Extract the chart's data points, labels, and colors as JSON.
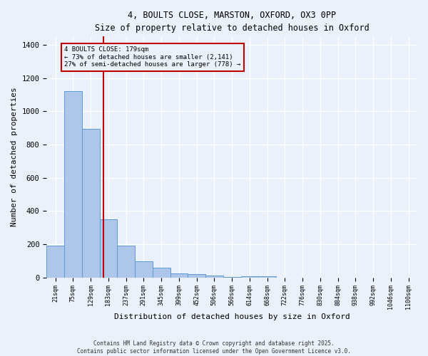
{
  "title_line1": "4, BOULTS CLOSE, MARSTON, OXFORD, OX3 0PP",
  "title_line2": "Size of property relative to detached houses in Oxford",
  "xlabel": "Distribution of detached houses by size in Oxford",
  "ylabel": "Number of detached properties",
  "bar_labels": [
    "21sqm",
    "75sqm",
    "129sqm",
    "183sqm",
    "237sqm",
    "291sqm",
    "345sqm",
    "399sqm",
    "452sqm",
    "506sqm",
    "560sqm",
    "614sqm",
    "668sqm",
    "722sqm",
    "776sqm",
    "830sqm",
    "884sqm",
    "938sqm",
    "992sqm",
    "1046sqm",
    "1100sqm"
  ],
  "bar_values": [
    193,
    1120,
    893,
    350,
    193,
    97,
    57,
    25,
    20,
    13,
    5,
    8,
    7,
    0,
    0,
    0,
    0,
    0,
    0,
    0,
    0
  ],
  "bar_color": "#aec6e8",
  "bar_edge_color": "#5b9bd5",
  "vline_x": 2.73,
  "vline_color": "#c00000",
  "annotation_box_text": "4 BOULTS CLOSE: 179sqm\n← 73% of detached houses are smaller (2,141)\n27% of semi-detached houses are larger (778) →",
  "box_edge_color": "#c00000",
  "ylim": [
    0,
    1450
  ],
  "yticks": [
    0,
    200,
    400,
    600,
    800,
    1000,
    1200,
    1400
  ],
  "background_color": "#eaf1fb",
  "grid_color": "#ffffff",
  "footer_line1": "Contains HM Land Registry data © Crown copyright and database right 2025.",
  "footer_line2": "Contains public sector information licensed under the Open Government Licence v3.0."
}
